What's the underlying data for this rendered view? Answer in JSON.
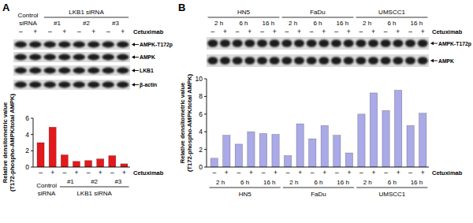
{
  "chart_data": [
    {
      "type": "bar",
      "panel": "A",
      "blot_rows": [
        "AMPK-T172p",
        "AMPK",
        "LKB1",
        "β-actin"
      ],
      "treatment_label": "Cetuximab",
      "categories": [
        "–",
        "+",
        "–",
        "+",
        "–",
        "+",
        "–",
        "+"
      ],
      "group": [
        "Control siRNA",
        "Control siRNA",
        "LKB1 siRNA",
        "LKB1 siRNA",
        "LKB1 siRNA",
        "LKB1 siRNA",
        "LKB1 siRNA",
        "LKB1 siRNA"
      ],
      "subgroup": [
        null,
        null,
        "#1",
        "#1",
        "#2",
        "#2",
        "#3",
        "#3"
      ],
      "values": [
        3.0,
        4.9,
        1.5,
        0.7,
        0.8,
        1.0,
        1.4,
        0.4
      ],
      "color": "#e3191c",
      "y_label": [
        "Relative densitometric value",
        "(T172-phospho-AMPK/total AMPK)"
      ],
      "ylim": [
        0,
        6
      ],
      "yticks": [
        0,
        2,
        4,
        6
      ]
    },
    {
      "type": "bar",
      "panel": "B",
      "blot_rows": [
        "AMPK-T172p",
        "AMPK"
      ],
      "treatment_label": "Cetuximab",
      "categories": [
        "–",
        "+",
        "–",
        "+",
        "–",
        "+",
        "–",
        "+",
        "–",
        "+",
        "–",
        "+",
        "–",
        "+",
        "–",
        "+",
        "–",
        "+"
      ],
      "group": [
        "HN5",
        "HN5",
        "HN5",
        "HN5",
        "HN5",
        "HN5",
        "FaDu",
        "FaDu",
        "FaDu",
        "FaDu",
        "FaDu",
        "FaDu",
        "UMSCC1",
        "UMSCC1",
        "UMSCC1",
        "UMSCC1",
        "UMSCC1",
        "UMSCC1"
      ],
      "subgroup": [
        "2 h",
        "2 h",
        "6 h",
        "6 h",
        "16 h",
        "16 h",
        "2 h",
        "2 h",
        "6 h",
        "6 h",
        "16 h",
        "16 h",
        "2 h",
        "2 h",
        "6 h",
        "6 h",
        "16 h",
        "16 h"
      ],
      "values": [
        1.0,
        3.6,
        2.6,
        4.0,
        3.8,
        3.7,
        1.3,
        4.9,
        3.2,
        4.7,
        3.6,
        1.6,
        6.0,
        8.4,
        6.4,
        8.7,
        4.7,
        6.1
      ],
      "color": "#aaaae8",
      "y_label": [
        "Relative densitometric value",
        "(T172-phospho-AMPK/total AMPK)"
      ],
      "ylim": [
        0,
        10
      ],
      "yticks": [
        0,
        2,
        4,
        6,
        8,
        10
      ]
    }
  ]
}
